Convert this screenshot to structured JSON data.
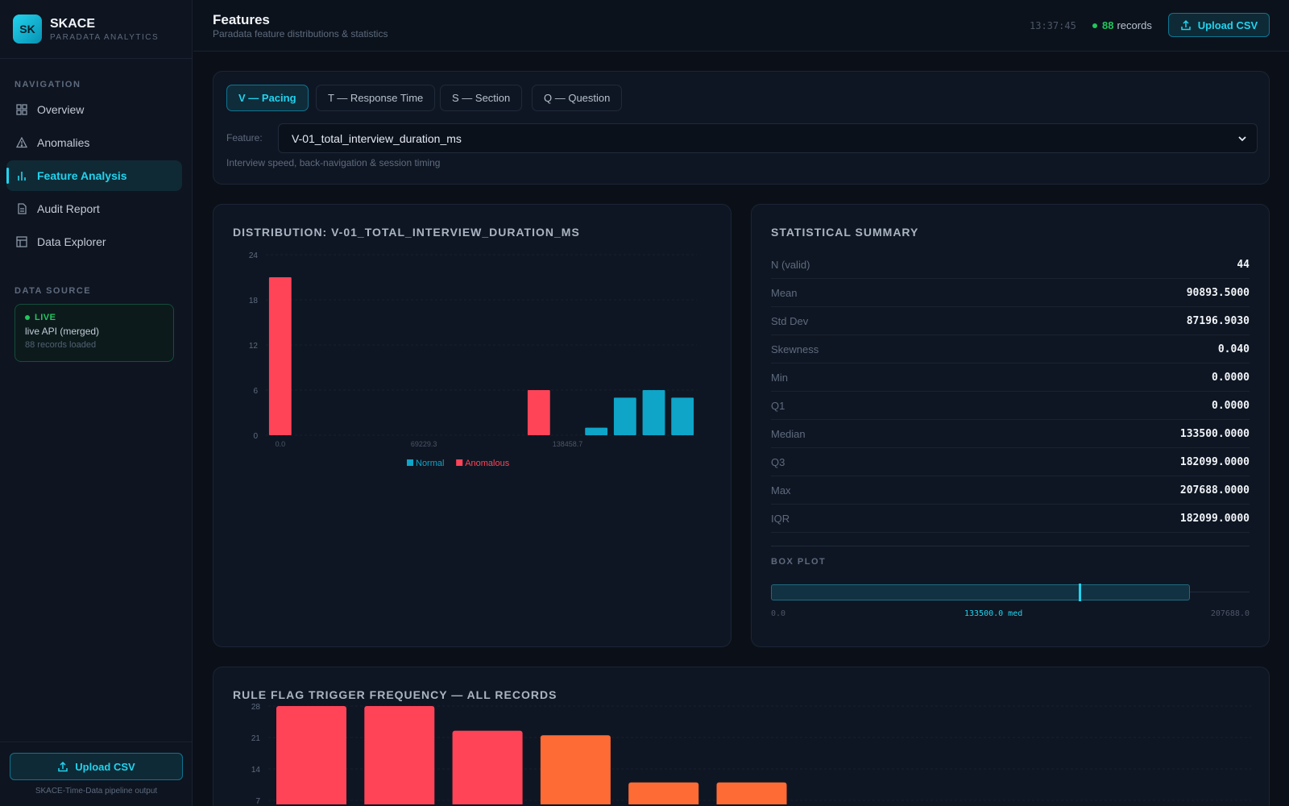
{
  "app": {
    "logo": "SK",
    "name": "SKACE",
    "subtitle": "PARADATA ANALYTICS"
  },
  "sidebar": {
    "section_label": "NAVIGATION",
    "items": [
      {
        "label": "Overview",
        "icon": "grid-icon"
      },
      {
        "label": "Anomalies",
        "icon": "warning-icon"
      },
      {
        "label": "Feature Analysis",
        "icon": "bar-chart-icon",
        "active": true
      },
      {
        "label": "Audit Report",
        "icon": "document-icon"
      },
      {
        "label": "Data Explorer",
        "icon": "table-icon"
      }
    ],
    "source_label": "DATA SOURCE",
    "source": {
      "status": "LIVE",
      "name": "live API (merged)",
      "count": "88 records loaded"
    },
    "upload_label": "Upload CSV",
    "footer": "SKACE-Time-Data pipeline output"
  },
  "header": {
    "title": "Features",
    "subtitle": "Paradata feature distributions & statistics",
    "clock": "13:37:45",
    "records_count": "88",
    "records_label": "records",
    "upload_label": "Upload CSV"
  },
  "tabs": [
    {
      "label": "V — Pacing",
      "active": true
    },
    {
      "label": "T — Response Time"
    },
    {
      "label": "S — Section"
    },
    {
      "label": "Q — Question"
    }
  ],
  "feature": {
    "label": "Feature:",
    "selected": "V-01_total_interview_duration_ms",
    "description": "Interview speed, back-navigation & session timing"
  },
  "distribution": {
    "title": "DISTRIBUTION: V-01_TOTAL_INTERVIEW_DURATION_MS"
  },
  "stats": {
    "title": "STATISTICAL SUMMARY",
    "rows": [
      {
        "k": "N (valid)",
        "v": "44"
      },
      {
        "k": "Mean",
        "v": "90893.5000"
      },
      {
        "k": "Std Dev",
        "v": "87196.9030"
      },
      {
        "k": "Skewness",
        "v": "0.040"
      },
      {
        "k": "Min",
        "v": "0.0000"
      },
      {
        "k": "Q1",
        "v": "0.0000"
      },
      {
        "k": "Median",
        "v": "133500.0000"
      },
      {
        "k": "Q3",
        "v": "182099.0000"
      },
      {
        "k": "Max",
        "v": "207688.0000"
      },
      {
        "k": "IQR",
        "v": "182099.0000"
      }
    ],
    "boxplot_label": "BOX PLOT",
    "boxplot_min": "0.0",
    "boxplot_median": "133500.0 med",
    "boxplot_max": "207688.0"
  },
  "rules": {
    "title": "RULE FLAG TRIGGER FREQUENCY — ALL RECORDS"
  },
  "colors": {
    "accent": "#22d3ee",
    "normal": "#0ea5c9",
    "anomalous": "#ff4458",
    "warning": "#ff6b35",
    "live": "#22c55e"
  },
  "chart_data": [
    {
      "type": "bar",
      "title": "DISTRIBUTION: V-01_TOTAL_INTERVIEW_DURATION_MS",
      "x_tick_labels": [
        "0.0",
        "69229.3",
        "138458.7"
      ],
      "ylim": [
        0,
        24
      ],
      "y_ticks": [
        0,
        6,
        12,
        18,
        24
      ],
      "bins": [
        {
          "v": 21,
          "series": "Anomalous"
        },
        {
          "v": 0,
          "series": "Normal"
        },
        {
          "v": 0,
          "series": "Normal"
        },
        {
          "v": 0,
          "series": "Normal"
        },
        {
          "v": 0,
          "series": "Normal"
        },
        {
          "v": 0,
          "series": "Normal"
        },
        {
          "v": 0,
          "series": "Normal"
        },
        {
          "v": 0,
          "series": "Normal"
        },
        {
          "v": 0,
          "series": "Normal"
        },
        {
          "v": 6,
          "series": "Anomalous"
        },
        {
          "v": 0,
          "series": "Normal"
        },
        {
          "v": 1,
          "series": "Normal"
        },
        {
          "v": 5,
          "series": "Normal"
        },
        {
          "v": 6,
          "series": "Normal"
        },
        {
          "v": 5,
          "series": "Normal"
        }
      ],
      "legend": [
        "Normal",
        "Anomalous"
      ],
      "legend_position": "bottom-center",
      "grid": true
    },
    {
      "type": "bar",
      "title": "RULE FLAG TRIGGER FREQUENCY — ALL RECORDS",
      "ylim": [
        0,
        28
      ],
      "y_ticks": [
        7,
        14,
        21,
        28
      ],
      "values": [
        {
          "v": 28,
          "level": "anomalous"
        },
        {
          "v": 28,
          "level": "anomalous"
        },
        {
          "v": 22.5,
          "level": "anomalous"
        },
        {
          "v": 21.5,
          "level": "warning"
        },
        {
          "v": 11,
          "level": "warning"
        },
        {
          "v": 11,
          "level": "warning"
        }
      ],
      "grid": true
    }
  ]
}
